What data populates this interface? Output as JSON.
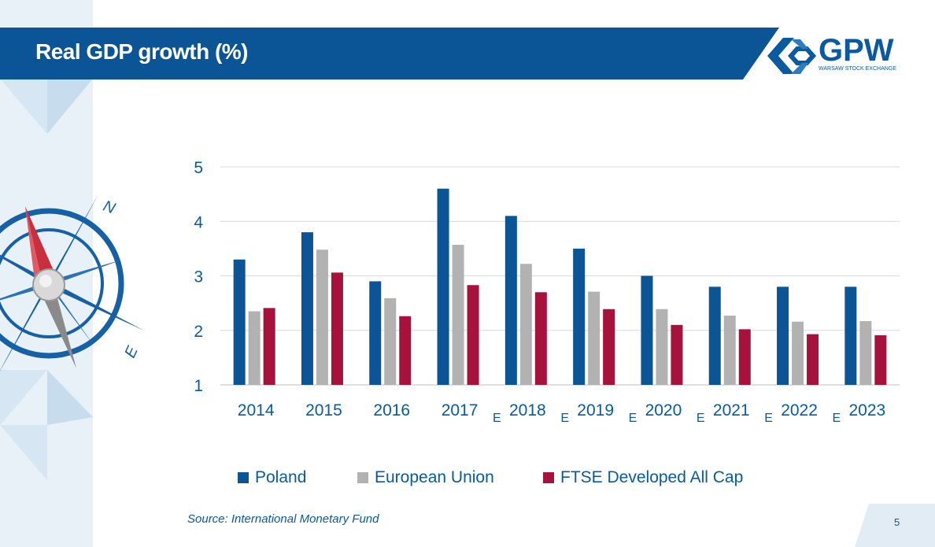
{
  "header": {
    "title": "Real GDP growth (%)"
  },
  "logo": {
    "name": "GPW",
    "subtitle": "WARSAW STOCK EXCHANGE"
  },
  "compass": {
    "north_label": "N",
    "east_label": "E"
  },
  "colors": {
    "poland": "#0b5496",
    "eu": "#b2b2b2",
    "ftse": "#a6123b",
    "accent": "#0a5aa0"
  },
  "chart_data": {
    "type": "bar",
    "title": "Real GDP growth (%)",
    "categories": [
      "2014",
      "2015",
      "2016",
      "2017",
      "2018",
      "2019",
      "2020",
      "2021",
      "2022",
      "2023"
    ],
    "estimate_marker": "E",
    "estimated": [
      false,
      false,
      false,
      false,
      true,
      true,
      true,
      true,
      true,
      true
    ],
    "series": [
      {
        "name": "Poland",
        "color": "#0b5496",
        "values": [
          3.3,
          3.8,
          2.9,
          4.6,
          4.1,
          3.5,
          3.0,
          2.8,
          2.8,
          2.8
        ]
      },
      {
        "name": "European Union",
        "color": "#b2b2b2",
        "values": [
          2.35,
          3.48,
          2.59,
          3.57,
          3.22,
          2.71,
          2.39,
          2.27,
          2.16,
          2.17
        ]
      },
      {
        "name": "FTSE Developed All Cap",
        "color": "#a6123b",
        "values": [
          2.41,
          3.06,
          2.26,
          2.83,
          2.7,
          2.39,
          2.1,
          2.02,
          1.93,
          1.91
        ]
      }
    ],
    "ylim": [
      1,
      5
    ],
    "yticks": [
      "1",
      "2",
      "3",
      "4",
      "5"
    ],
    "grid": true,
    "legend_position": "bottom"
  },
  "footer": {
    "source": "Source: International Monetary Fund",
    "page_number": "5"
  }
}
